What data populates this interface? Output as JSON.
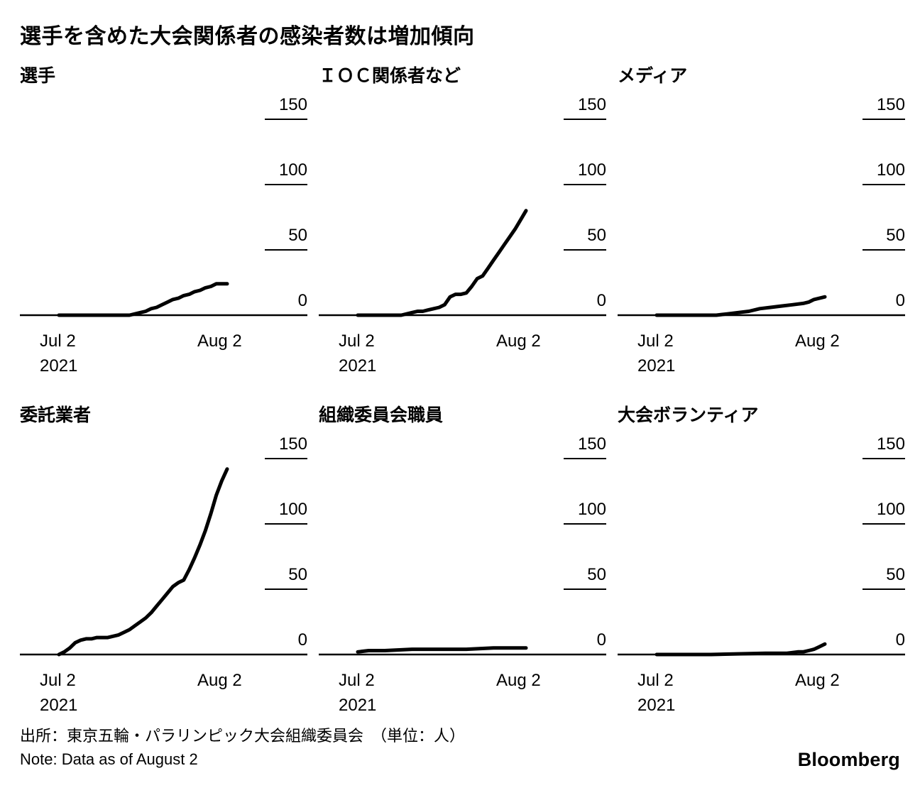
{
  "page": {
    "title": "選手を含めた大会関係者の感染者数は増加傾向",
    "source_line": "出所：東京五輪・パラリンピック大会組織委員会　（単位：人）",
    "note_line": "Note: Data as of August 2",
    "brand": "Bloomberg"
  },
  "axis": {
    "yticks": [
      0,
      50,
      100,
      150
    ],
    "ylim": [
      0,
      150
    ],
    "xtick_labels": [
      "Jul 2",
      "Aug 2"
    ],
    "year_label": "2021",
    "x_domain_days": [
      0,
      31
    ],
    "line_color": "#000000"
  },
  "chart_data": [
    {
      "type": "line",
      "title": "選手",
      "unit": "人",
      "x_days_from_jul2": [
        0,
        10,
        13,
        14,
        15,
        16,
        17,
        18,
        19,
        20,
        21,
        22,
        23,
        24,
        25,
        26,
        27,
        28,
        29,
        31
      ],
      "values": [
        0,
        0,
        0,
        1,
        2,
        3,
        5,
        6,
        8,
        10,
        12,
        13,
        15,
        16,
        18,
        19,
        21,
        22,
        24,
        24
      ]
    },
    {
      "type": "line",
      "title": "ＩＯＣ関係者など",
      "unit": "人",
      "x_days_from_jul2": [
        0,
        8,
        9,
        10,
        11,
        12,
        13,
        14,
        15,
        16,
        17,
        18,
        19,
        20,
        21,
        22,
        23,
        24,
        25,
        26,
        27,
        28,
        29,
        30,
        31
      ],
      "values": [
        0,
        0,
        1,
        2,
        3,
        3,
        4,
        5,
        6,
        8,
        14,
        16,
        16,
        17,
        22,
        28,
        30,
        36,
        42,
        48,
        54,
        60,
        66,
        73,
        80
      ]
    },
    {
      "type": "line",
      "title": "メディア",
      "unit": "人",
      "x_days_from_jul2": [
        0,
        11,
        13,
        15,
        17,
        19,
        21,
        23,
        25,
        27,
        28,
        29,
        30,
        31
      ],
      "values": [
        0,
        0,
        1,
        2,
        3,
        5,
        6,
        7,
        8,
        9,
        10,
        12,
        13,
        14
      ]
    },
    {
      "type": "line",
      "title": "委託業者",
      "unit": "人",
      "x_days_from_jul2": [
        0,
        1,
        2,
        3,
        4,
        5,
        6,
        7,
        9,
        11,
        12,
        13,
        14,
        15,
        16,
        17,
        18,
        19,
        20,
        21,
        22,
        23,
        24,
        25,
        26,
        27,
        28,
        29,
        30,
        31
      ],
      "values": [
        0,
        2,
        5,
        9,
        11,
        12,
        12,
        13,
        13,
        15,
        17,
        19,
        22,
        25,
        28,
        32,
        37,
        42,
        47,
        52,
        55,
        57,
        65,
        74,
        84,
        95,
        108,
        122,
        133,
        142
      ]
    },
    {
      "type": "line",
      "title": "組織委員会職員",
      "unit": "人",
      "x_days_from_jul2": [
        0,
        2,
        5,
        10,
        15,
        20,
        25,
        28,
        31
      ],
      "values": [
        2,
        3,
        3,
        4,
        4,
        4,
        5,
        5,
        5
      ]
    },
    {
      "type": "line",
      "title": "大会ボランティア",
      "unit": "人",
      "x_days_from_jul2": [
        0,
        10,
        20,
        24,
        26,
        27,
        28,
        29,
        30,
        31
      ],
      "values": [
        0,
        0,
        1,
        1,
        2,
        2,
        3,
        4,
        6,
        8
      ]
    }
  ]
}
